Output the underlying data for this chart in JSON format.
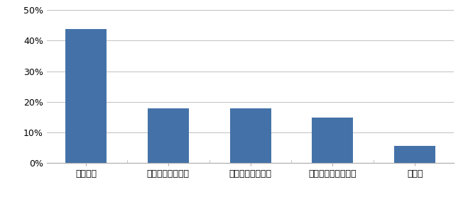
{
  "categories": [
    "業務都合",
    "育児、家事、介護",
    "通勤ストレス軽減",
    "プライベートの充実",
    "その他"
  ],
  "values": [
    43.7,
    18.0,
    17.8,
    14.8,
    5.7
  ],
  "bar_color": "#4472a8",
  "ylim": [
    0,
    50
  ],
  "yticks": [
    0,
    10,
    20,
    30,
    40,
    50
  ],
  "ytick_labels": [
    "0%",
    "10%",
    "20%",
    "30%",
    "40%",
    "50%"
  ],
  "bar_width": 0.5,
  "background_color": "#ffffff",
  "grid_color": "#c0c0c0",
  "tick_fontsize": 9,
  "label_fontsize": 9
}
